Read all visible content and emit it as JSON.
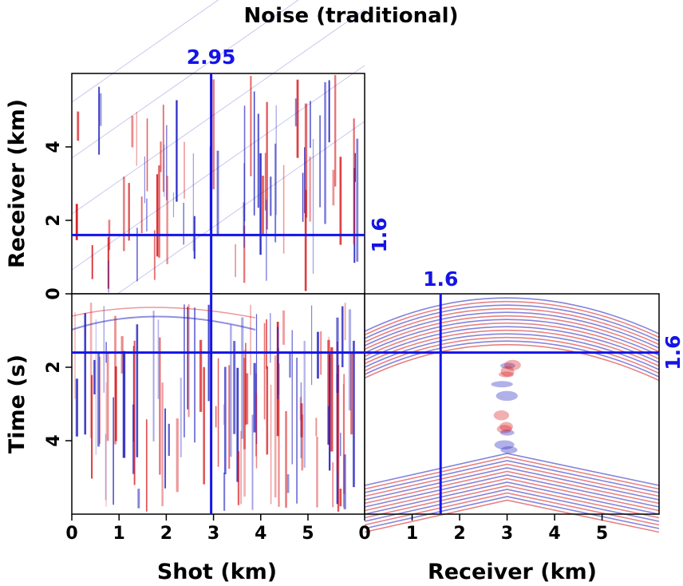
{
  "chart_data": {
    "type": "heatmap",
    "title": "Noise (traditional)",
    "colors": {
      "positive": "#d7191c",
      "negative": "#1f1fbf",
      "background": "#ffffff",
      "crosshair": "#1414e6"
    },
    "panels": [
      {
        "id": "top-left",
        "ylabel": "Receiver (km)",
        "x_range": [
          0,
          6.2
        ],
        "y_range": [
          0,
          6
        ],
        "yticks": [
          {
            "v": 0,
            "label": "0"
          },
          {
            "v": 2,
            "label": "2"
          },
          {
            "v": 4,
            "label": "4"
          }
        ]
      },
      {
        "id": "bottom-left",
        "xlabel": "Shot (km)",
        "ylabel": "Time (s)",
        "x_range": [
          0,
          6.2
        ],
        "y_range": [
          0,
          6
        ],
        "xticks": [
          {
            "v": 0,
            "label": "0"
          },
          {
            "v": 1,
            "label": "1"
          },
          {
            "v": 2,
            "label": "2"
          },
          {
            "v": 3,
            "label": "3"
          },
          {
            "v": 4,
            "label": "4"
          },
          {
            "v": 5,
            "label": "5"
          }
        ],
        "yticks": [
          {
            "v": 2,
            "label": "2"
          },
          {
            "v": 4,
            "label": "4"
          }
        ]
      },
      {
        "id": "bottom-right",
        "xlabel": "Receiver (km)",
        "x_range": [
          0,
          6.2
        ],
        "y_range": [
          0,
          6
        ],
        "xticks": [
          {
            "v": 0,
            "label": "0"
          },
          {
            "v": 1,
            "label": "1"
          },
          {
            "v": 2,
            "label": "2"
          },
          {
            "v": 3,
            "label": "3"
          },
          {
            "v": 4,
            "label": "4"
          },
          {
            "v": 5,
            "label": "5"
          }
        ]
      }
    ],
    "crosshair": {
      "shot_km": 2.95,
      "shot_label": "2.95",
      "receiver_km": 1.6,
      "receiver_label": "1.6",
      "time_s": 1.6,
      "time_label": "1.6",
      "cube_receiver_label": "1.6"
    }
  }
}
